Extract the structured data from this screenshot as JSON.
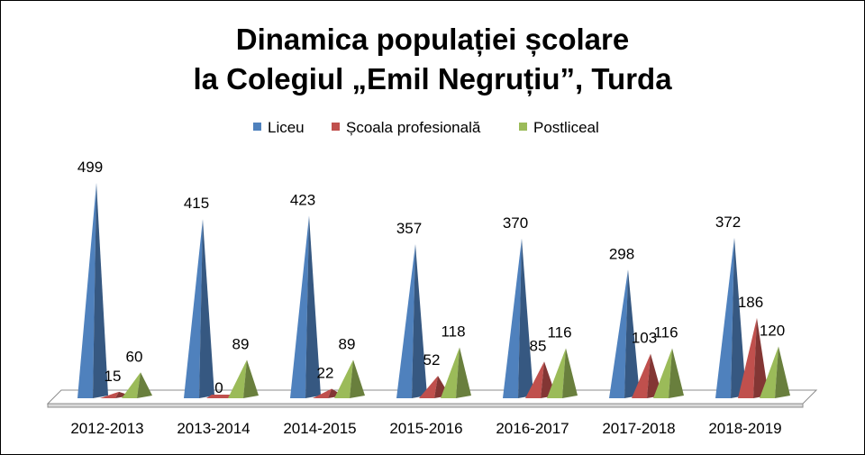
{
  "chart_data": {
    "type": "bar",
    "title": [
      "Dinamica populației școlare",
      "la Colegiul „Emil Negruțiu”, Turda"
    ],
    "categories": [
      "2012-2013",
      "2013-2014",
      "2014-2015",
      "2015-2016",
      "2016-2017",
      "2017-2018",
      "2018-2019"
    ],
    "series": [
      {
        "name": "Liceu",
        "color": "#4f81bd",
        "values": [
          499,
          415,
          423,
          357,
          370,
          298,
          372
        ]
      },
      {
        "name": "Școala profesională",
        "color": "#c0504d",
        "values": [
          15,
          0,
          22,
          52,
          85,
          103,
          186
        ]
      },
      {
        "name": "Postliceal",
        "color": "#9bbb59",
        "values": [
          60,
          89,
          89,
          118,
          116,
          116,
          120
        ]
      }
    ],
    "shape": "3d-pyramid",
    "legend_position": "top",
    "grid": false,
    "ylim": [
      0,
      499
    ],
    "data_labels": true
  }
}
